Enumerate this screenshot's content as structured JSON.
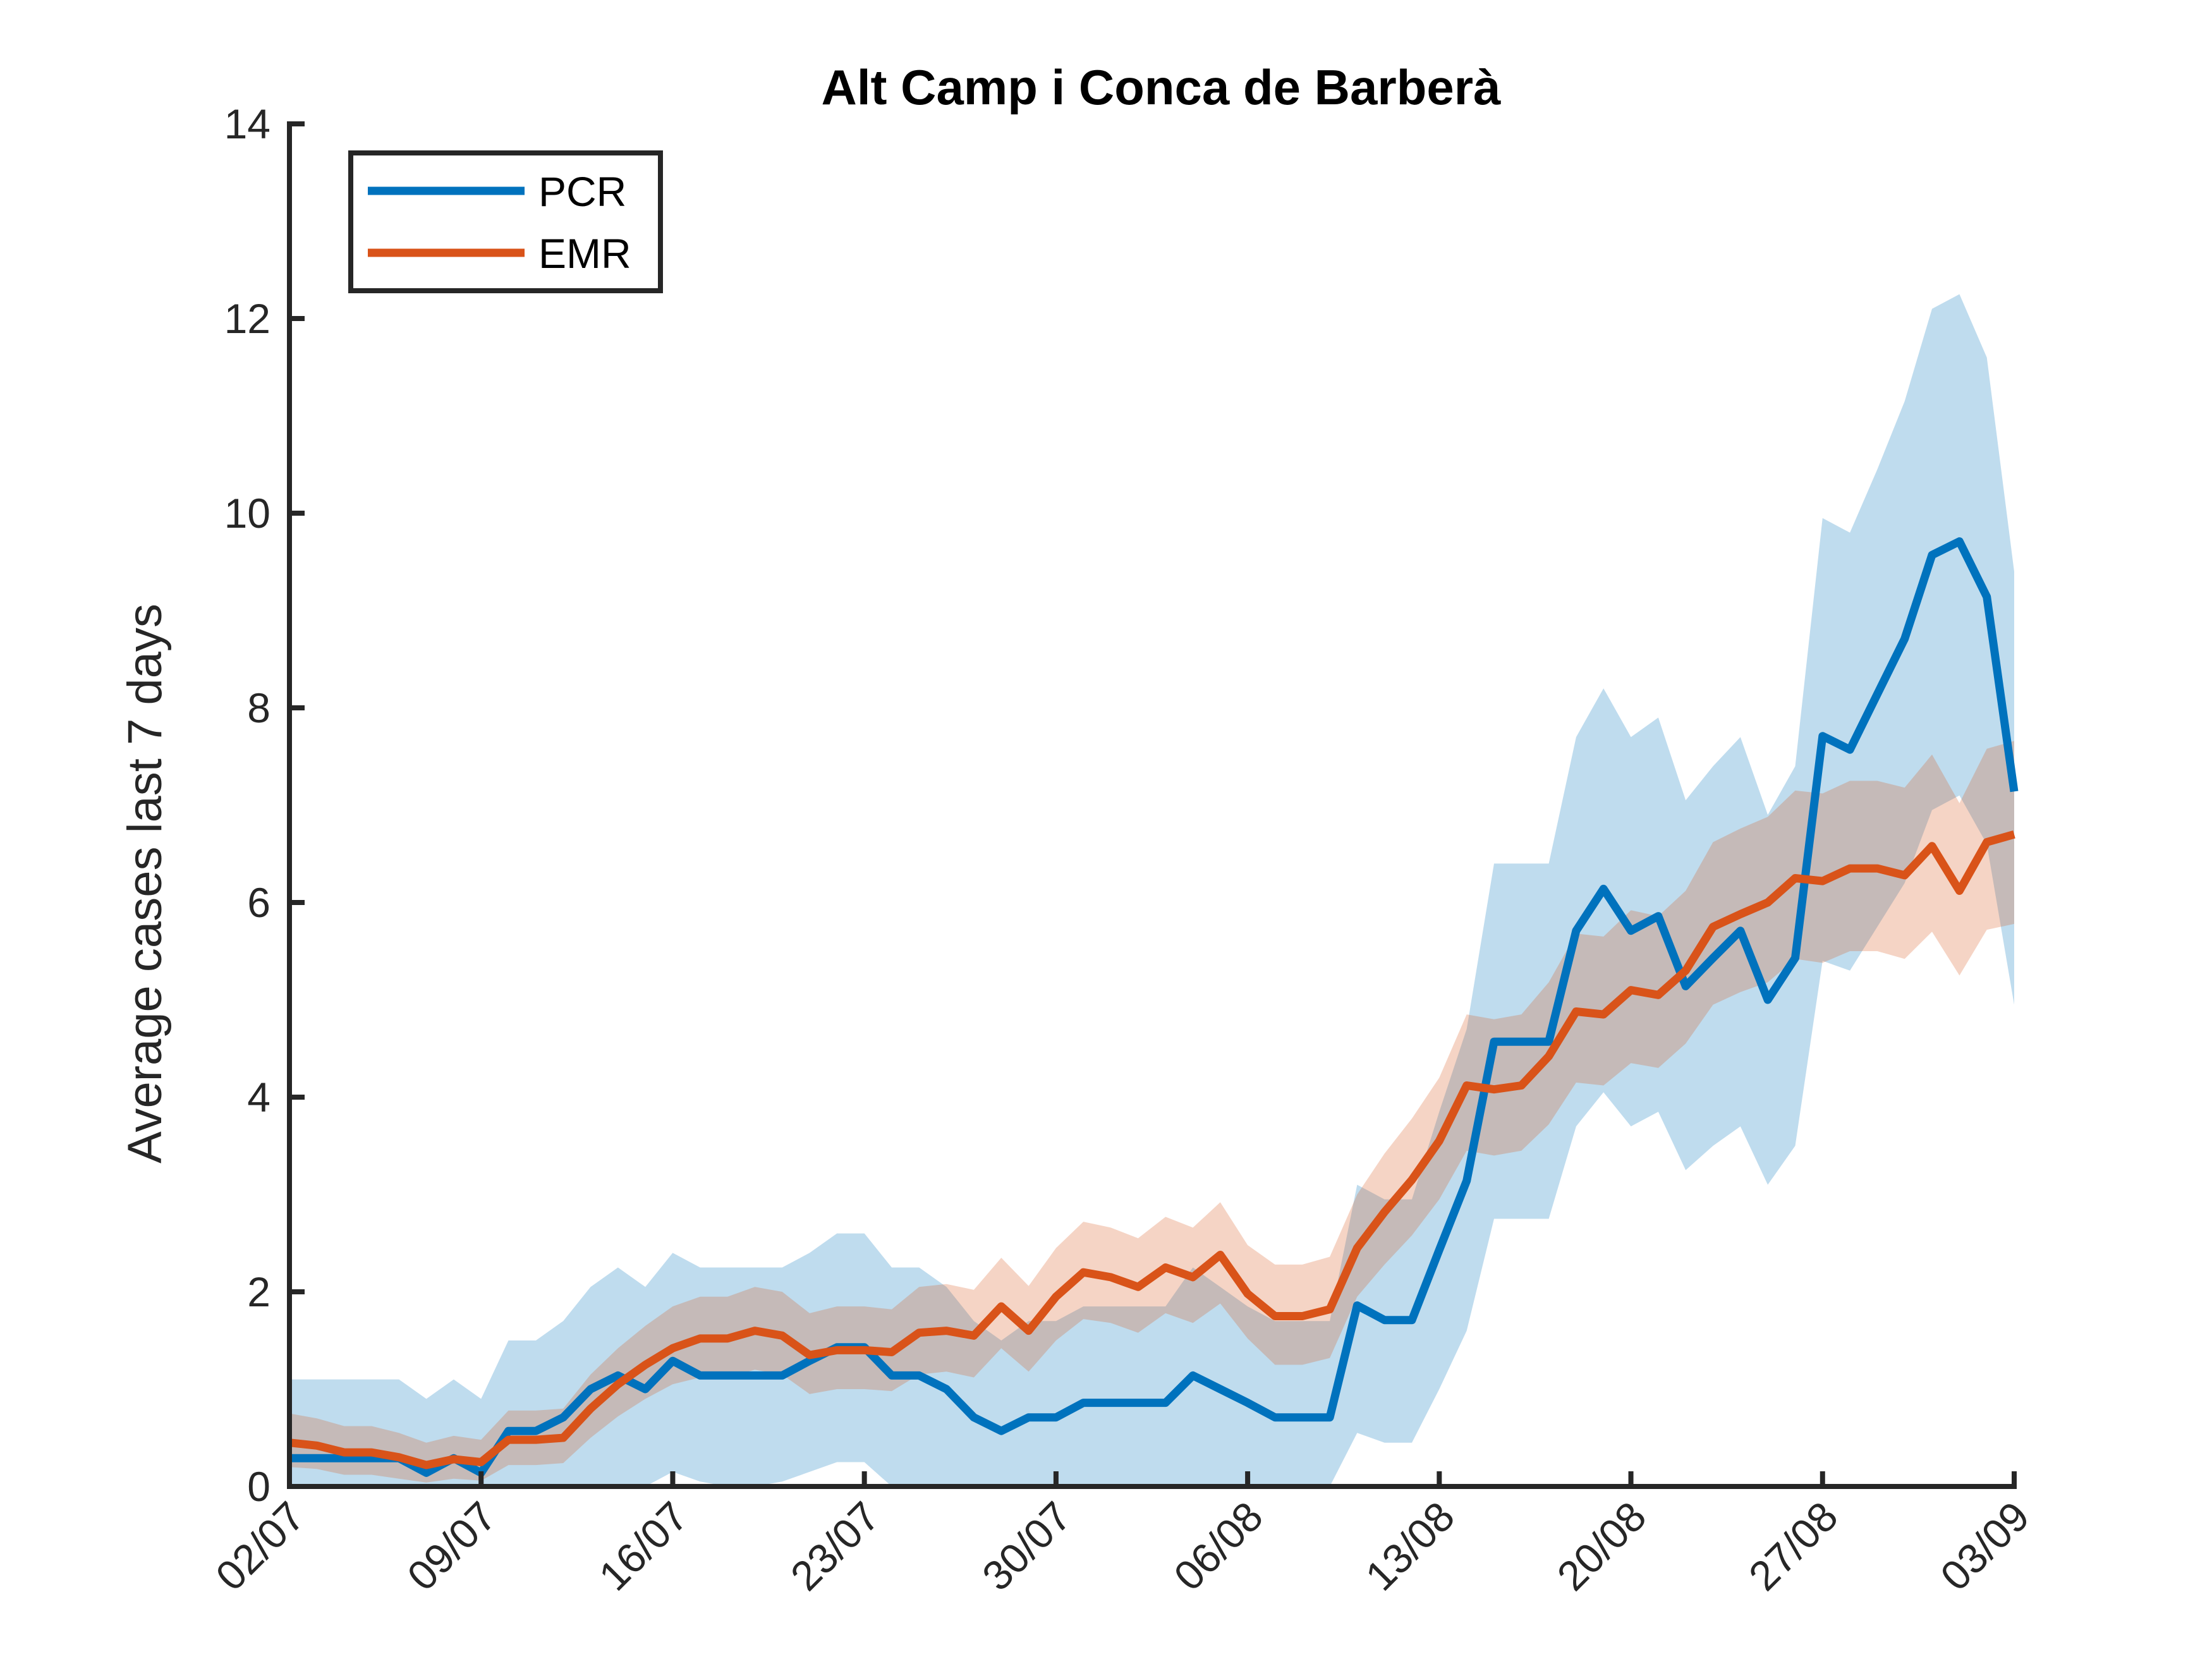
{
  "chart_data": {
    "type": "line",
    "title": "Alt Camp i Conca de Barberà",
    "xlabel": "",
    "ylabel": "Average cases last 7 days",
    "x_start": "02/07",
    "x_end": "03/09",
    "xlim": [
      "02/07",
      "03/09"
    ],
    "ylim": [
      0,
      14
    ],
    "yticks": [
      0,
      2,
      4,
      6,
      8,
      10,
      12,
      14
    ],
    "ytick_labels": [
      "0",
      "2",
      "4",
      "6",
      "8",
      "10",
      "12",
      "14"
    ],
    "xtick_labels": [
      "02/07",
      "09/07",
      "16/07",
      "23/07",
      "30/07",
      "06/08",
      "13/08",
      "20/08",
      "27/08",
      "03/09"
    ],
    "grid": false,
    "legend_position": "top-left",
    "series": [
      {
        "name": "PCR",
        "color": "#0072BD",
        "band_color": "#0072BD",
        "values": [
          0.29,
          0.29,
          0.29,
          0.29,
          0.29,
          0.14,
          0.29,
          0.14,
          0.57,
          0.57,
          0.71,
          1.0,
          1.14,
          1.0,
          1.29,
          1.14,
          1.14,
          1.14,
          1.14,
          1.29,
          1.43,
          1.43,
          1.14,
          1.14,
          1.0,
          0.71,
          0.57,
          0.71,
          0.71,
          0.86,
          0.86,
          0.86,
          0.86,
          1.14,
          1.0,
          0.86,
          0.71,
          0.71,
          0.71,
          1.86,
          1.71,
          1.71,
          2.43,
          3.14,
          4.57,
          4.57,
          4.57,
          5.71,
          6.14,
          5.71,
          5.86,
          5.14,
          5.43,
          5.71,
          5.0,
          5.43,
          7.71,
          7.57,
          8.14,
          8.71,
          9.57,
          9.71,
          9.14,
          7.14
        ],
        "lower": [
          0.0,
          0.0,
          0.0,
          0.0,
          0.0,
          0.0,
          0.0,
          0.0,
          0.0,
          0.0,
          0.0,
          0.0,
          0.0,
          0.0,
          0.15,
          0.05,
          0.0,
          0.0,
          0.05,
          0.15,
          0.25,
          0.25,
          0.0,
          0.0,
          0.0,
          0.0,
          0.0,
          0.0,
          0.0,
          0.0,
          0.0,
          0.0,
          0.0,
          0.0,
          0.0,
          0.0,
          0.0,
          0.0,
          0.0,
          0.55,
          0.45,
          0.45,
          1.0,
          1.6,
          2.75,
          2.75,
          2.75,
          3.7,
          4.05,
          3.7,
          3.85,
          3.25,
          3.5,
          3.7,
          3.1,
          3.5,
          5.4,
          5.3,
          5.75,
          6.2,
          6.95,
          7.1,
          6.6,
          4.95
        ],
        "upper": [
          1.1,
          1.1,
          1.1,
          1.1,
          1.1,
          0.9,
          1.1,
          0.9,
          1.5,
          1.5,
          1.7,
          2.05,
          2.25,
          2.05,
          2.4,
          2.25,
          2.25,
          2.25,
          2.25,
          2.4,
          2.6,
          2.6,
          2.25,
          2.25,
          2.05,
          1.7,
          1.5,
          1.7,
          1.7,
          1.85,
          1.85,
          1.85,
          1.85,
          2.25,
          2.05,
          1.85,
          1.7,
          1.7,
          1.7,
          3.1,
          2.95,
          2.95,
          3.85,
          4.7,
          6.4,
          6.4,
          6.4,
          7.7,
          8.2,
          7.7,
          7.9,
          7.05,
          7.4,
          7.7,
          6.9,
          7.4,
          9.95,
          9.8,
          10.45,
          11.15,
          12.1,
          12.25,
          11.6,
          9.4
        ]
      },
      {
        "name": "EMR",
        "color": "#D95319",
        "band_color": "#D95319",
        "values": [
          0.45,
          0.42,
          0.35,
          0.35,
          0.3,
          0.22,
          0.28,
          0.25,
          0.48,
          0.48,
          0.5,
          0.8,
          1.05,
          1.25,
          1.42,
          1.52,
          1.52,
          1.6,
          1.55,
          1.35,
          1.4,
          1.4,
          1.38,
          1.58,
          1.6,
          1.55,
          1.85,
          1.6,
          1.95,
          2.2,
          2.15,
          2.05,
          2.25,
          2.15,
          2.38,
          1.98,
          1.75,
          1.75,
          1.82,
          2.45,
          2.82,
          3.15,
          3.55,
          4.12,
          4.08,
          4.12,
          4.42,
          4.88,
          4.85,
          5.1,
          5.05,
          5.3,
          5.75,
          5.88,
          6.0,
          6.25,
          6.22,
          6.35,
          6.35,
          6.28,
          6.58,
          6.12,
          6.62,
          6.7
        ],
        "lower": [
          0.2,
          0.18,
          0.12,
          0.12,
          0.08,
          0.04,
          0.08,
          0.06,
          0.22,
          0.22,
          0.24,
          0.5,
          0.72,
          0.9,
          1.05,
          1.12,
          1.12,
          1.2,
          1.15,
          0.95,
          1.0,
          1.0,
          0.98,
          1.15,
          1.18,
          1.12,
          1.42,
          1.18,
          1.5,
          1.72,
          1.68,
          1.58,
          1.78,
          1.68,
          1.88,
          1.52,
          1.25,
          1.25,
          1.32,
          1.95,
          2.28,
          2.58,
          2.95,
          3.45,
          3.4,
          3.45,
          3.72,
          4.15,
          4.12,
          4.35,
          4.3,
          4.55,
          4.95,
          5.08,
          5.18,
          5.42,
          5.38,
          5.5,
          5.5,
          5.42,
          5.7,
          5.25,
          5.72,
          5.78
        ],
        "upper": [
          0.75,
          0.7,
          0.62,
          0.62,
          0.55,
          0.45,
          0.52,
          0.48,
          0.78,
          0.78,
          0.8,
          1.15,
          1.42,
          1.65,
          1.85,
          1.95,
          1.95,
          2.05,
          2.0,
          1.78,
          1.85,
          1.85,
          1.82,
          2.05,
          2.08,
          2.02,
          2.35,
          2.06,
          2.45,
          2.72,
          2.66,
          2.55,
          2.77,
          2.66,
          2.92,
          2.48,
          2.28,
          2.28,
          2.36,
          3.0,
          3.42,
          3.78,
          4.2,
          4.85,
          4.8,
          4.85,
          5.18,
          5.68,
          5.65,
          5.92,
          5.86,
          6.12,
          6.62,
          6.76,
          6.88,
          7.15,
          7.12,
          7.25,
          7.25,
          7.18,
          7.52,
          7.02,
          7.58,
          7.66
        ]
      }
    ]
  }
}
